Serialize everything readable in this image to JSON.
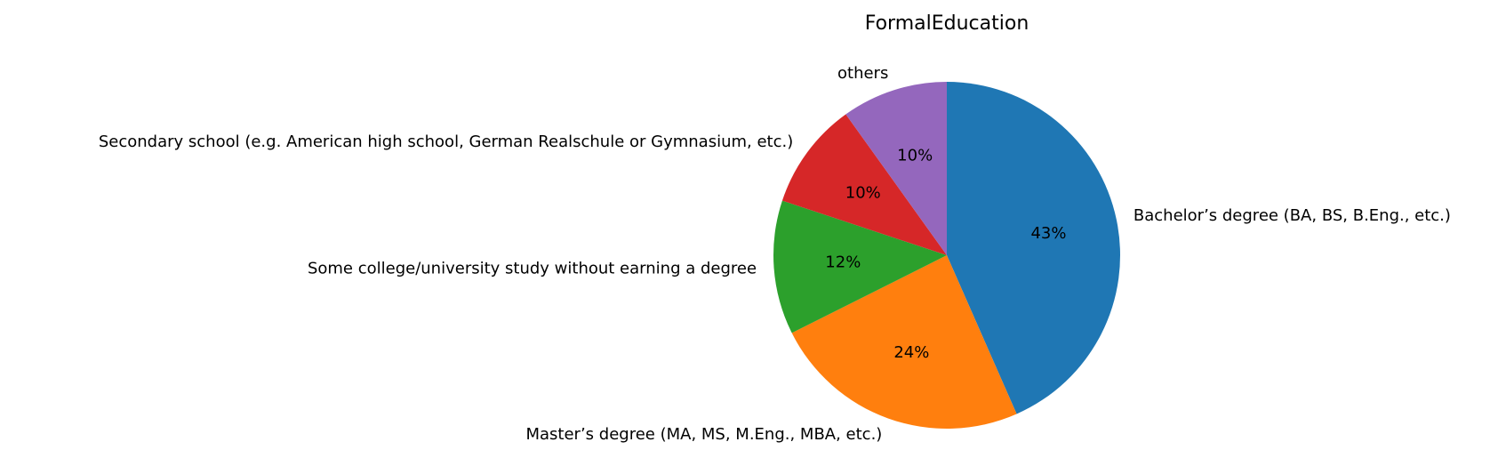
{
  "chart_data": {
    "type": "pie",
    "title": "FormalEducation",
    "categories": [
      "Bachelor’s degree (BA, BS, B.Eng., etc.)",
      "Master’s degree (MA, MS, M.Eng., MBA, etc.)",
      "Some college/university study without earning a degree",
      "Secondary school (e.g. American high school, German Realschule or Gymnasium, etc.)",
      "others"
    ],
    "values": [
      43.4,
      24.2,
      12.5,
      10.0,
      9.9
    ],
    "percent_labels": [
      "43%",
      "24%",
      "12%",
      "10%",
      "10%"
    ],
    "colors": [
      "#1f77b4",
      "#ff7f0e",
      "#2ca02c",
      "#d62728",
      "#9467bd"
    ],
    "start_angle": "top",
    "direction": "clockwise",
    "legend": "none"
  }
}
